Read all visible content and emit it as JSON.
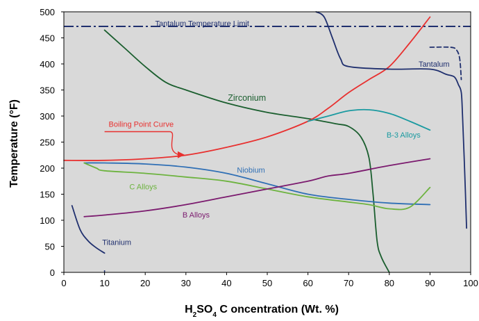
{
  "chart_data": {
    "type": "line",
    "title": "",
    "xlabel": {
      "parts": [
        {
          "t": "H",
          "sub": false
        },
        {
          "t": "2",
          "sub": true
        },
        {
          "t": "SO",
          "sub": false
        },
        {
          "t": "4",
          "sub": true
        },
        {
          "t": " C oncentration  (Wt. %)",
          "sub": false
        }
      ]
    },
    "ylabel": "Temperature   (°F)",
    "xlim": [
      0,
      100
    ],
    "ylim": [
      0,
      500
    ],
    "xticks": [
      0,
      10,
      20,
      30,
      40,
      50,
      60,
      70,
      80,
      90,
      100
    ],
    "yticks": [
      0,
      50,
      100,
      150,
      200,
      250,
      300,
      350,
      400,
      450,
      500
    ],
    "plot_background": "#d9d9d9",
    "reference_lines": [
      {
        "name": "Tantalum Temperature Limit",
        "y": 472,
        "color": "#1f2f6e",
        "dash": "dash-dot"
      }
    ],
    "series": [
      {
        "name": "Titanium",
        "color": "#1f2f6e",
        "x": [
          2,
          4,
          6,
          8,
          10
        ],
        "y": [
          128,
          82,
          60,
          47,
          37
        ]
      },
      {
        "name": "Zirconium",
        "color": "#1a5e2e",
        "x": [
          10,
          15,
          20,
          25,
          30,
          40,
          50,
          60,
          67,
          70,
          73,
          75,
          76,
          77,
          78,
          80
        ],
        "y": [
          465,
          430,
          395,
          365,
          350,
          325,
          307,
          295,
          285,
          280,
          260,
          220,
          150,
          60,
          30,
          0
        ]
      },
      {
        "name": "Boiling Point Curve",
        "color": "#e8302f",
        "x": [
          0,
          10,
          20,
          30,
          40,
          50,
          60,
          65,
          70,
          75,
          80,
          85,
          90
        ],
        "y": [
          215,
          215,
          218,
          225,
          240,
          260,
          290,
          315,
          345,
          370,
          395,
          440,
          490
        ]
      },
      {
        "name": "B-3 Alloys",
        "color": "#1a9aa0",
        "x": [
          60,
          65,
          70,
          75,
          80,
          85,
          90
        ],
        "y": [
          290,
          300,
          310,
          312,
          305,
          290,
          273
        ]
      },
      {
        "name": "Niobium",
        "color": "#2f6fb5",
        "x": [
          5,
          10,
          20,
          30,
          40,
          50,
          60,
          70,
          80,
          90
        ],
        "y": [
          210,
          210,
          208,
          202,
          190,
          170,
          150,
          140,
          133,
          130
        ]
      },
      {
        "name": "C Alloys",
        "color": "#6db33f",
        "x": [
          5,
          8,
          10,
          20,
          30,
          40,
          50,
          60,
          70,
          75,
          80,
          85,
          90
        ],
        "y": [
          210,
          200,
          195,
          190,
          183,
          175,
          160,
          145,
          135,
          130,
          122,
          125,
          163
        ]
      },
      {
        "name": "B Alloys",
        "color": "#7b1a6e",
        "x": [
          5,
          10,
          20,
          30,
          40,
          50,
          60,
          65,
          70,
          80,
          90
        ],
        "y": [
          107,
          110,
          118,
          130,
          145,
          160,
          175,
          185,
          190,
          205,
          218
        ]
      },
      {
        "name": "Tantalum",
        "color": "#1f2f6e",
        "x": [
          62,
          64,
          66,
          68,
          70,
          80,
          90,
          94,
          96,
          97,
          97.7,
          98,
          98.5,
          99
        ],
        "y": [
          500,
          490,
          450,
          410,
          395,
          390,
          390,
          380,
          375,
          360,
          345,
          300,
          200,
          85
        ]
      },
      {
        "name": "",
        "color": "#1f2f6e",
        "dashed": true,
        "x": [
          90,
          95,
          96.5,
          97.3,
          97.7
        ],
        "y": [
          432,
          432,
          427,
          410,
          370
        ]
      },
      {
        "name": "",
        "color": "#1f2f6e",
        "x": [
          10,
          10
        ],
        "y": [
          0,
          0
        ]
      }
    ],
    "labels": [
      {
        "series": "Tantalum Temperature Limit",
        "text": "Tantalum Temperature Limit",
        "color": "#1f2f6e",
        "x": 34,
        "y": 478,
        "anchor": "middle"
      },
      {
        "series": "Tantalum",
        "text": "Tantalum",
        "color": "#1f2f6e",
        "x": 91,
        "y": 400,
        "anchor": "middle"
      },
      {
        "series": "Zirconium",
        "text": "Zirconium",
        "color": "#1a5e2e",
        "x": 45,
        "y": 335,
        "anchor": "middle"
      },
      {
        "series": "Boiling Point Curve",
        "text": "Boiling Point Curve",
        "color": "#e8302f",
        "x": 19,
        "y": 285,
        "anchor": "middle"
      },
      {
        "series": "B-3 Alloys",
        "text": "B-3 Alloys",
        "color": "#1a9aa0",
        "x": 83.5,
        "y": 264,
        "anchor": "middle"
      },
      {
        "series": "Niobium",
        "text": "Niobium",
        "color": "#2f6fb5",
        "x": 46,
        "y": 197,
        "anchor": "middle"
      },
      {
        "series": "C Alloys",
        "text": "C Alloys",
        "color": "#6db33f",
        "x": 19.5,
        "y": 165,
        "anchor": "middle"
      },
      {
        "series": "B Alloys",
        "text": "B Alloys",
        "color": "#7b1a6e",
        "x": 32.5,
        "y": 111,
        "anchor": "middle"
      },
      {
        "series": "Titanium",
        "text": "Titanium",
        "color": "#1f2f6e",
        "x": 13,
        "y": 58,
        "anchor": "middle"
      }
    ]
  }
}
